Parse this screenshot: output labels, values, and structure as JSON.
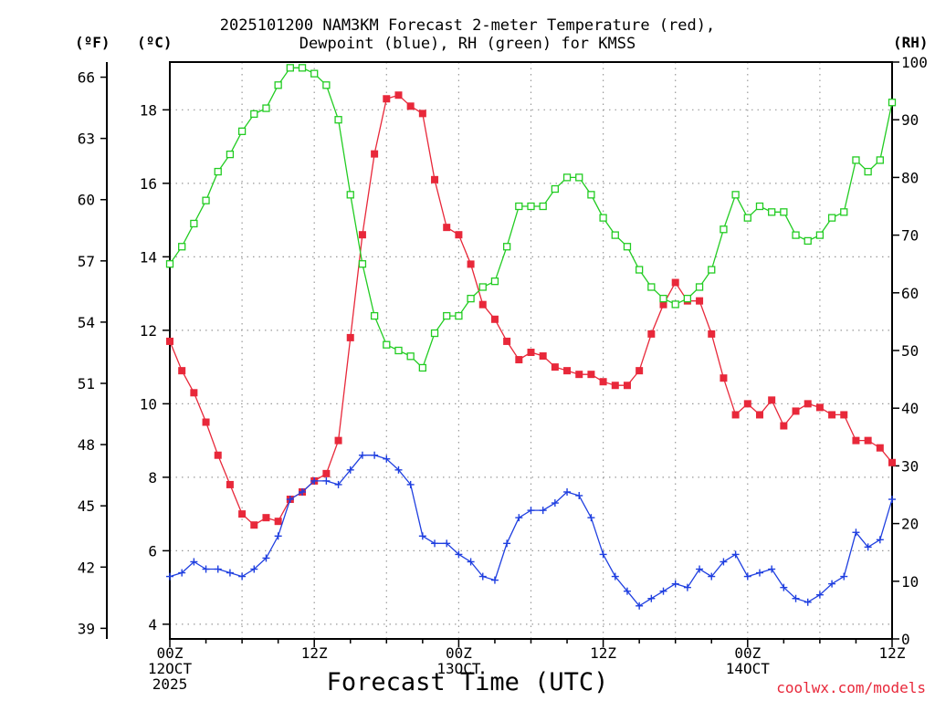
{
  "title_line1": "2025101200 NAM3KM Forecast 2-meter Temperature (red),",
  "title_line2": "Dewpoint (blue), RH (green) for KMSS",
  "units": {
    "fahrenheit": "(ºF)",
    "celsius": "(ºC)",
    "rh": "(RH)"
  },
  "x_axis_title": "Forecast Time (UTC)",
  "credit": "coolwx.com/models",
  "colors": {
    "temperature": "#e8283a",
    "dewpoint": "#1f3fe0",
    "rh": "#22cc22",
    "grid": "#9a9a9a"
  },
  "chart_data": {
    "type": "line",
    "title": "2025101200 NAM3KM Forecast 2-meter Temperature (red), Dewpoint (blue), RH (green) for KMSS",
    "xlabel": "Forecast Time (UTC)",
    "x_unit": "forecast hour from 2025-10-12 00Z",
    "x": [
      0,
      1,
      2,
      3,
      4,
      5,
      6,
      7,
      8,
      9,
      10,
      11,
      12,
      13,
      14,
      15,
      16,
      17,
      18,
      19,
      20,
      21,
      22,
      23,
      24,
      25,
      26,
      27,
      28,
      29,
      30,
      31,
      32,
      33,
      34,
      35,
      36,
      37,
      38,
      39,
      40,
      41,
      42,
      43,
      44,
      45,
      46,
      47,
      48,
      49,
      50,
      51,
      52,
      53,
      54,
      55,
      56,
      57,
      58,
      59,
      60
    ],
    "xlim": [
      0,
      60
    ],
    "x_ticks": [
      {
        "value": 0,
        "lines": [
          "00Z",
          "12OCT",
          "2025"
        ]
      },
      {
        "value": 12,
        "lines": [
          "12Z"
        ]
      },
      {
        "value": 24,
        "lines": [
          "00Z",
          "13OCT"
        ]
      },
      {
        "value": 36,
        "lines": [
          "12Z"
        ]
      },
      {
        "value": 48,
        "lines": [
          "00Z",
          "14OCT"
        ]
      },
      {
        "value": 60,
        "lines": [
          "12Z"
        ]
      }
    ],
    "y_celsius": {
      "label": "(ºC)",
      "lim": [
        3.6,
        19.3
      ],
      "ticks": [
        4,
        6,
        8,
        10,
        12,
        14,
        16,
        18
      ]
    },
    "y_fahrenheit": {
      "label": "(ºF)",
      "ticks": [
        39,
        42,
        45,
        48,
        51,
        54,
        57,
        60,
        63,
        66
      ]
    },
    "y_rh": {
      "label": "(RH)",
      "lim": [
        0,
        100
      ],
      "ticks": [
        0,
        10,
        20,
        30,
        40,
        50,
        60,
        70,
        80,
        90,
        100
      ]
    },
    "series": [
      {
        "name": "2-meter Temperature",
        "axis": "celsius",
        "color": "#e8283a",
        "marker": "filled-square",
        "values": [
          11.7,
          10.9,
          10.3,
          9.5,
          8.6,
          7.8,
          7.0,
          6.7,
          6.9,
          6.8,
          7.4,
          7.6,
          7.9,
          8.1,
          9.0,
          11.8,
          14.6,
          16.8,
          18.3,
          18.4,
          18.1,
          17.9,
          16.1,
          14.8,
          14.6,
          13.8,
          12.7,
          12.3,
          11.7,
          11.2,
          11.4,
          11.3,
          11.0,
          10.9,
          10.8,
          10.8,
          10.6,
          10.5,
          10.5,
          10.9,
          11.9,
          12.7,
          13.3,
          12.8,
          12.8,
          11.9,
          10.7,
          9.7,
          10.0,
          9.7,
          10.1,
          9.4,
          9.8,
          10.0,
          9.9,
          9.7,
          9.7,
          9.0,
          9.0,
          8.8,
          8.4
        ]
      },
      {
        "name": "Dewpoint",
        "axis": "celsius",
        "color": "#1f3fe0",
        "marker": "plus",
        "values": [
          5.3,
          5.4,
          5.7,
          5.5,
          5.5,
          5.4,
          5.3,
          5.5,
          5.8,
          6.4,
          7.4,
          7.6,
          7.9,
          7.9,
          7.8,
          8.2,
          8.6,
          8.6,
          8.5,
          8.2,
          7.8,
          6.4,
          6.2,
          6.2,
          5.9,
          5.7,
          5.3,
          5.2,
          6.2,
          6.9,
          7.1,
          7.1,
          7.3,
          7.6,
          7.5,
          6.9,
          5.9,
          5.3,
          4.9,
          4.5,
          4.7,
          4.9,
          5.1,
          5.0,
          5.5,
          5.3,
          5.7,
          5.9,
          5.3,
          5.4,
          5.5,
          5.0,
          4.7,
          4.6,
          4.8,
          5.1,
          5.3,
          6.5,
          6.1,
          6.3,
          7.4
        ]
      },
      {
        "name": "RH",
        "axis": "rh",
        "color": "#22cc22",
        "marker": "open-square",
        "values": [
          65,
          68,
          72,
          76,
          81,
          84,
          88,
          91,
          92,
          96,
          99,
          99,
          98,
          96,
          90,
          77,
          65,
          56,
          51,
          50,
          49,
          47,
          53,
          56,
          56,
          59,
          61,
          62,
          68,
          75,
          75,
          75,
          78,
          80,
          80,
          77,
          73,
          70,
          68,
          64,
          61,
          59,
          58,
          59,
          61,
          64,
          71,
          77,
          73,
          75,
          74,
          74,
          70,
          69,
          70,
          73,
          74,
          83,
          81,
          83,
          93
        ]
      }
    ]
  }
}
